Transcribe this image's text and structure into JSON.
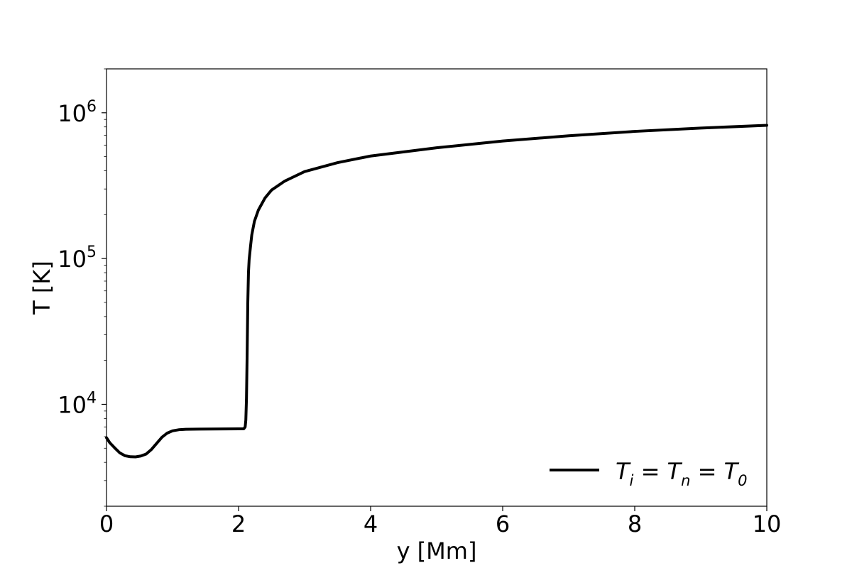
{
  "chart_data": {
    "type": "line",
    "xlabel": "y [Mm]",
    "ylabel": "T [K]",
    "xlim": [
      0,
      10
    ],
    "ylim": [
      2000,
      2000000
    ],
    "yscale": "log",
    "grid": false,
    "legend_position": "lower-right",
    "x_ticks": [
      "0",
      "2",
      "4",
      "6",
      "8",
      "10"
    ],
    "y_ticks": [
      {
        "base": "10",
        "exp": "4",
        "value": 10000
      },
      {
        "base": "10",
        "exp": "5",
        "value": 100000
      },
      {
        "base": "10",
        "exp": "6",
        "value": 1000000
      }
    ],
    "series": [
      {
        "name": "T_i = T_n = T_0",
        "name_parts": {
          "T1": "T",
          "s1": "i",
          "eq1": " = ",
          "T2": "T",
          "s2": "n",
          "eq2": " = ",
          "T3": "T",
          "s3": "0"
        },
        "color": "#000000",
        "x": [
          0,
          0.05,
          0.12,
          0.2,
          0.28,
          0.36,
          0.44,
          0.52,
          0.6,
          0.68,
          0.76,
          0.84,
          0.92,
          1.0,
          1.1,
          1.2,
          1.4,
          1.6,
          1.8,
          2.0,
          2.08,
          2.1,
          2.11,
          2.12,
          2.13,
          2.14,
          2.15,
          2.16,
          2.18,
          2.2,
          2.24,
          2.3,
          2.4,
          2.5,
          2.7,
          3.0,
          3.5,
          4.0,
          5.0,
          6.0,
          7.0,
          8.0,
          9.0,
          10.0
        ],
        "y": [
          5900,
          5450,
          5050,
          4650,
          4440,
          4370,
          4360,
          4420,
          4560,
          4900,
          5400,
          5950,
          6350,
          6580,
          6700,
          6740,
          6760,
          6770,
          6780,
          6790,
          6800,
          7000,
          7800,
          11000,
          22000,
          50000,
          80000,
          98000,
          120000,
          145000,
          180000,
          215000,
          260000,
          295000,
          340000,
          395000,
          455000,
          505000,
          575000,
          640000,
          695000,
          745000,
          785000,
          820000
        ]
      }
    ]
  }
}
